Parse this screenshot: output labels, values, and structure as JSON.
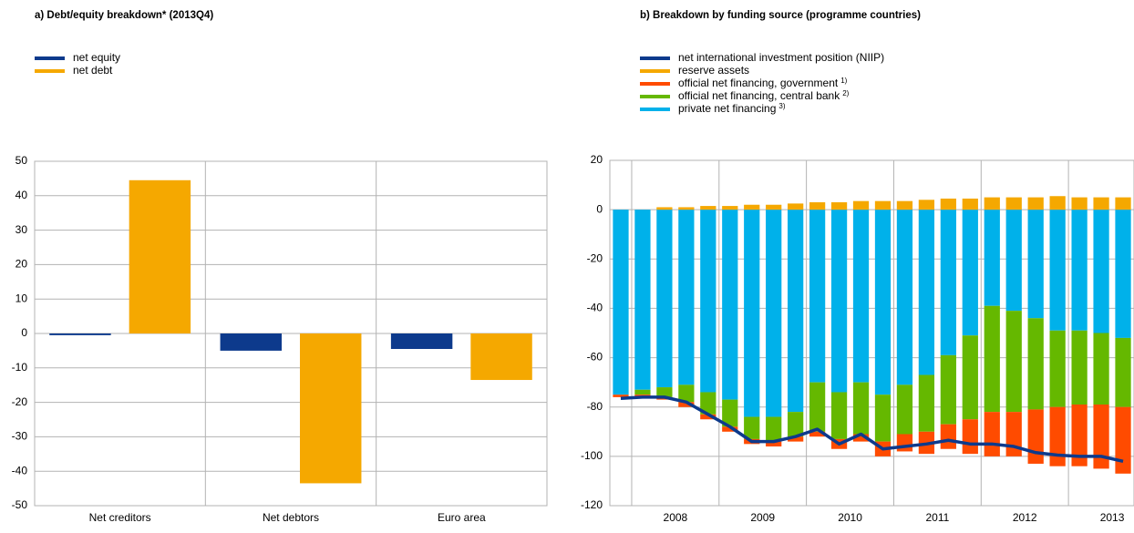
{
  "chart_data": [
    {
      "type": "bar",
      "title": "a) Debt/equity breakdown* (2013Q4)",
      "categories": [
        "Net creditors",
        "Net debtors",
        "Euro area"
      ],
      "series": [
        {
          "name": "net equity",
          "color": "#0d3a8c",
          "values": [
            -0.5,
            -5,
            -4.5
          ]
        },
        {
          "name": "net debt",
          "color": "#f5a800",
          "values": [
            44.5,
            -43.5,
            -13.5
          ]
        }
      ],
      "ylim": [
        -50,
        50
      ],
      "yticks": [
        -50,
        -40,
        -30,
        -20,
        -10,
        0,
        10,
        20,
        30,
        40,
        50
      ],
      "grid": true
    },
    {
      "type": "stacked_bar_line",
      "title": "b) Breakdown by funding source (programme countries)",
      "categories": [
        null,
        null,
        null,
        null,
        null,
        null,
        null,
        null,
        null,
        null,
        null,
        null,
        null,
        null,
        null,
        null,
        null,
        null,
        null,
        null,
        null,
        null,
        null,
        null
      ],
      "xlabels": [
        "2008",
        "2009",
        "2010",
        "2011",
        "2012",
        "2013"
      ],
      "series": [
        {
          "name": "net international investment position (NIIP)",
          "color": "#0d3a8c",
          "kind": "line",
          "values": [
            -76.5,
            -76,
            -76,
            -78,
            -83,
            -88,
            -94,
            -94,
            -92,
            -89,
            -95,
            -91,
            -97,
            -96,
            -95,
            -93.5,
            -95,
            -95,
            -96,
            -98.5,
            -99.5,
            -100,
            -100,
            -102
          ]
        },
        {
          "name": "reserve assets",
          "color": "#f5a800",
          "kind": "bar",
          "values": [
            0,
            0,
            1,
            1,
            1.5,
            1.5,
            2,
            2,
            2.5,
            3,
            3,
            3.5,
            3.5,
            3.5,
            4,
            4.5,
            4.5,
            5,
            5,
            5,
            5.5,
            5,
            5,
            5
          ]
        },
        {
          "name": "official net financing, government",
          "sup": "1)",
          "color": "#ff4b00",
          "kind": "bar",
          "values": [
            -1,
            -1,
            -1,
            -2,
            -2,
            -2,
            -2,
            -2,
            -2,
            -2,
            -4,
            -3,
            -6,
            -7,
            -9,
            -10,
            -14,
            -18,
            -18,
            -22,
            -24,
            -25,
            -26,
            -27
          ]
        },
        {
          "name": "official net financing, central bank",
          "sup": "2)",
          "color": "#65b800",
          "kind": "bar",
          "values": [
            0,
            -2,
            -4,
            -7,
            -9,
            -11,
            -9,
            -10,
            -10,
            -20,
            -19,
            -21,
            -19,
            -20,
            -23,
            -28,
            -34,
            -43,
            -41,
            -37,
            -31,
            -30,
            -29,
            -28
          ]
        },
        {
          "name": "private net financing",
          "sup": "3)",
          "color": "#00b1ea",
          "kind": "bar",
          "values": [
            -75,
            -73,
            -72,
            -71,
            -74,
            -77,
            -84,
            -84,
            -82,
            -70,
            -74,
            -70,
            -75,
            -71,
            -67,
            -59,
            -51,
            -39,
            -41,
            -44,
            -49,
            -49,
            -50,
            -52
          ]
        }
      ],
      "ylim": [
        -120,
        20
      ],
      "yticks": [
        -120,
        -100,
        -80,
        -60,
        -40,
        -20,
        0,
        20
      ],
      "grid": true
    }
  ]
}
